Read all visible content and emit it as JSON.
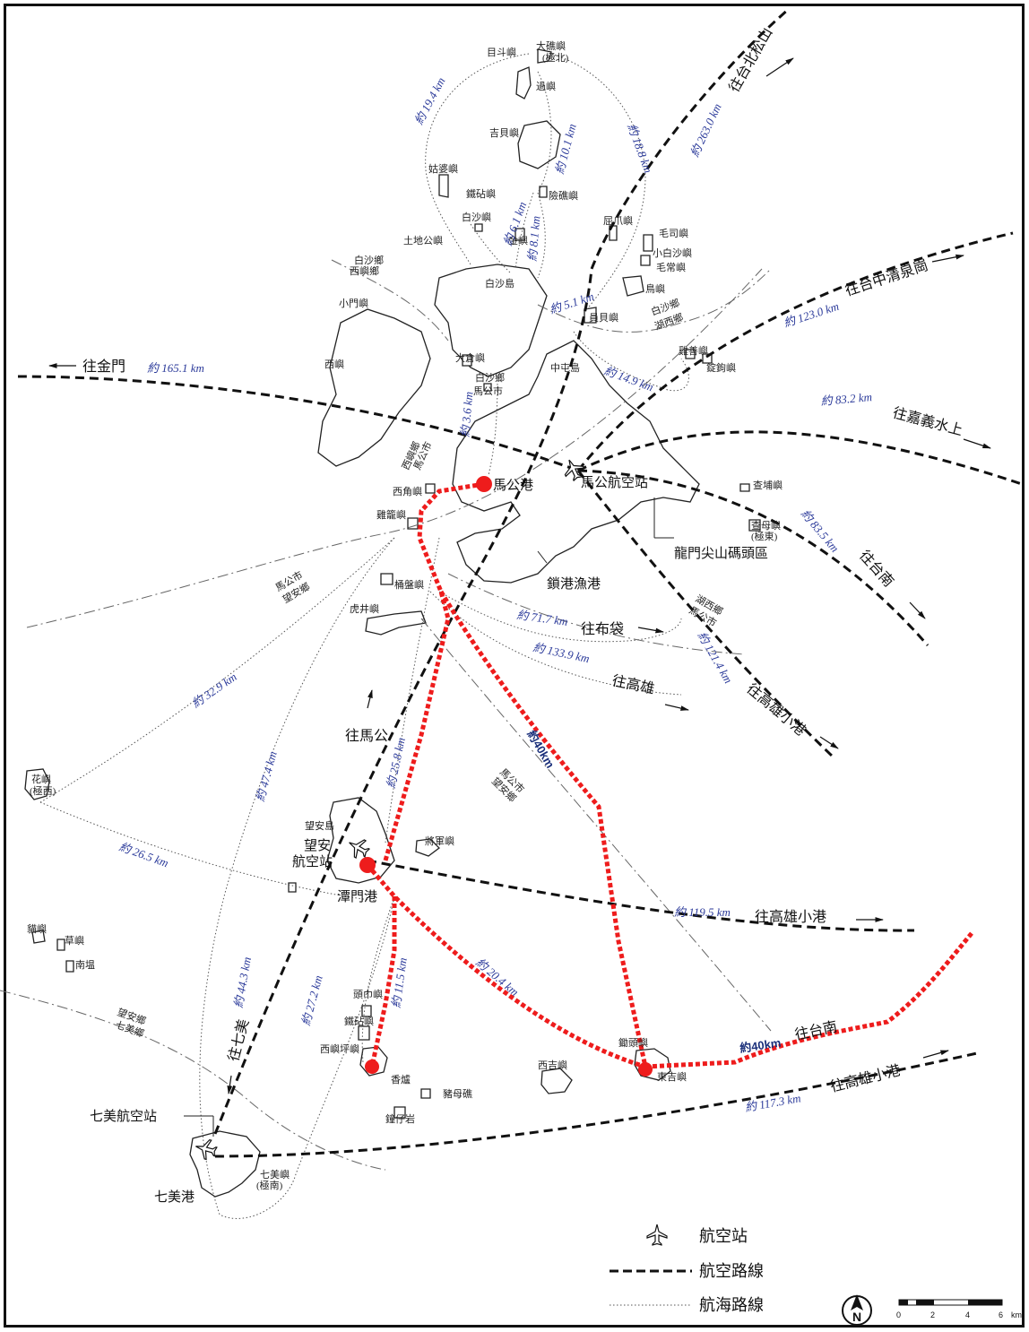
{
  "islands": {
    "mudouyu": "目斗嶼",
    "dachiyu": "大礁嶼",
    "dachiyu_note": "(極北)",
    "guyu": "過嶼",
    "jibeiyu": "吉貝嶼",
    "zhanpoyu": "姑婆嶼",
    "tiezhenyu": "鐵砧嶼",
    "xianjiaoyu": "險礁嶼",
    "baishayu": "白沙嶼",
    "tudigongyu": "土地公嶼",
    "jinyu": "金嶼",
    "quzhaoyu": "屈爪嶼",
    "maosiyu": "毛司嶼",
    "xiaobaishayu": "小白沙嶼",
    "maochangyu": "毛常嶼",
    "niaoyu": "鳥嶼",
    "baishadao": "白沙島",
    "yuanbeiyu": "員貝嶼",
    "xiaomenyu": "小門嶼",
    "dacangyu": "大倉嶼",
    "zhongtundao": "中屯島",
    "jishanyu": "雞善嶼",
    "zhuogouyu": "錠鉤嶼",
    "xiyu": "西嶼",
    "chapoyu": "查埔嶼",
    "chamuyu": "查母嶼",
    "chamuyu_note": "(極東)",
    "xijiaoyu": "西角嶼",
    "jilongyu": "雞籠嶼",
    "tongpanyu": "桶盤嶼",
    "hujingyu": "虎井嶼",
    "huayu": "花嶼",
    "huayu_note": "(極西)",
    "wanganyu": "望安島",
    "jiangjunyu": "將軍嶼",
    "maoyu": "貓嶼",
    "caoyu": "草嶼",
    "nanqi": "南塭",
    "toujinyu": "頭巾嶼",
    "tiezhenyu2": "鐵砧嶼",
    "xiyupingyu": "西嶼坪嶼",
    "xiangyu": "香爐",
    "jijiyu": "鋤頭嶼",
    "xijiyu": "西吉嶼",
    "dongjiyu": "東吉嶼",
    "tiemuyu": "豬母礁",
    "zhaziyan": "鐘仔岩",
    "qimeiyu": "七美嶼",
    "qimeiyu_note": "(極南)"
  },
  "ports": {
    "magong_port": "馬公港",
    "magong_airport": "馬公航空站",
    "longmen": "龍門尖山碼頭區",
    "suogang": "鎖港漁港",
    "wangan_airport_1": "望安",
    "wangan_airport_2": "航空站",
    "tanmen": "潭門港",
    "qimei_airport": "七美航空站",
    "qimei_port": "七美港"
  },
  "districts": {
    "baisha_xiyu": [
      "白沙鄉",
      "西嶼鄉"
    ],
    "baisha_magong": [
      "白沙鄉",
      "馬公市"
    ],
    "xiyu_magong": [
      "西嶼鄉",
      "馬公市"
    ],
    "baisha_huxi": [
      "白沙鄉",
      "湖西鄉"
    ],
    "huxi_magong": [
      "湖西鄉",
      "馬公市"
    ],
    "magong_wangan": [
      "馬公市",
      "望安鄉"
    ],
    "magong_wangan_2": [
      "馬公市",
      "望安鄉"
    ],
    "wangan_qimei": [
      "望安鄉",
      "七美鄉"
    ]
  },
  "directions": {
    "jinmen": "往金門",
    "taibei": "往台北松山",
    "taichung": "往台中清泉崗",
    "jiayi": "往嘉義水上",
    "tainan_air": "往台南",
    "budai": "往布袋",
    "kaohsiung": "往高雄",
    "kaohsiung_xiaogang_1": "往高雄小港",
    "magong": "往馬公",
    "kaohsiung_xiaogang_2": "往高雄小港",
    "tainan_red": "往台南",
    "qimei": "往七美",
    "kaohsiung_xiaogang_3": "往高雄小港"
  },
  "distances": {
    "d194": "約 19.4 km",
    "d188": "約 18.8 km",
    "d101": "約 10.1 km",
    "d61": "約 6.1 km",
    "d81": "約 8.1 km",
    "d2630": "約 263.0 km",
    "d51": "約 5.1 km",
    "d1230": "約 123.0 km",
    "d1651": "約 165.1 km",
    "d149": "約 14.9 km",
    "d36": "約 3.6 km",
    "d832": "約 83.2 km",
    "d835": "約 83.5 km",
    "d717": "約 71.7 km",
    "d1339": "約 133.9 km",
    "d1214": "約 121.4 km",
    "d329": "約 32.9 km",
    "d258": "約 25.8 km",
    "d474": "約 47.4 km",
    "d265": "約 26.5 km",
    "d1195": "約 119.5 km",
    "d204": "約 20.4 km",
    "d115": "約 11.5 km",
    "d272": "約 27.2 km",
    "d443": "約 44.3 km",
    "d1173": "約 117.3 km"
  },
  "red_labels": {
    "diag": "約40km",
    "east": "約40km"
  },
  "legend": {
    "airport": "航空站",
    "air_route": "航空路線",
    "sea_route": "航海路線"
  },
  "scale": {
    "ticks": [
      "0",
      "2",
      "4",
      "6"
    ],
    "unit": "km",
    "north": "N"
  },
  "colors": {
    "highlight_route": "#ee1c1c",
    "distance_text": "#2b3a9a",
    "line": "#111111"
  }
}
